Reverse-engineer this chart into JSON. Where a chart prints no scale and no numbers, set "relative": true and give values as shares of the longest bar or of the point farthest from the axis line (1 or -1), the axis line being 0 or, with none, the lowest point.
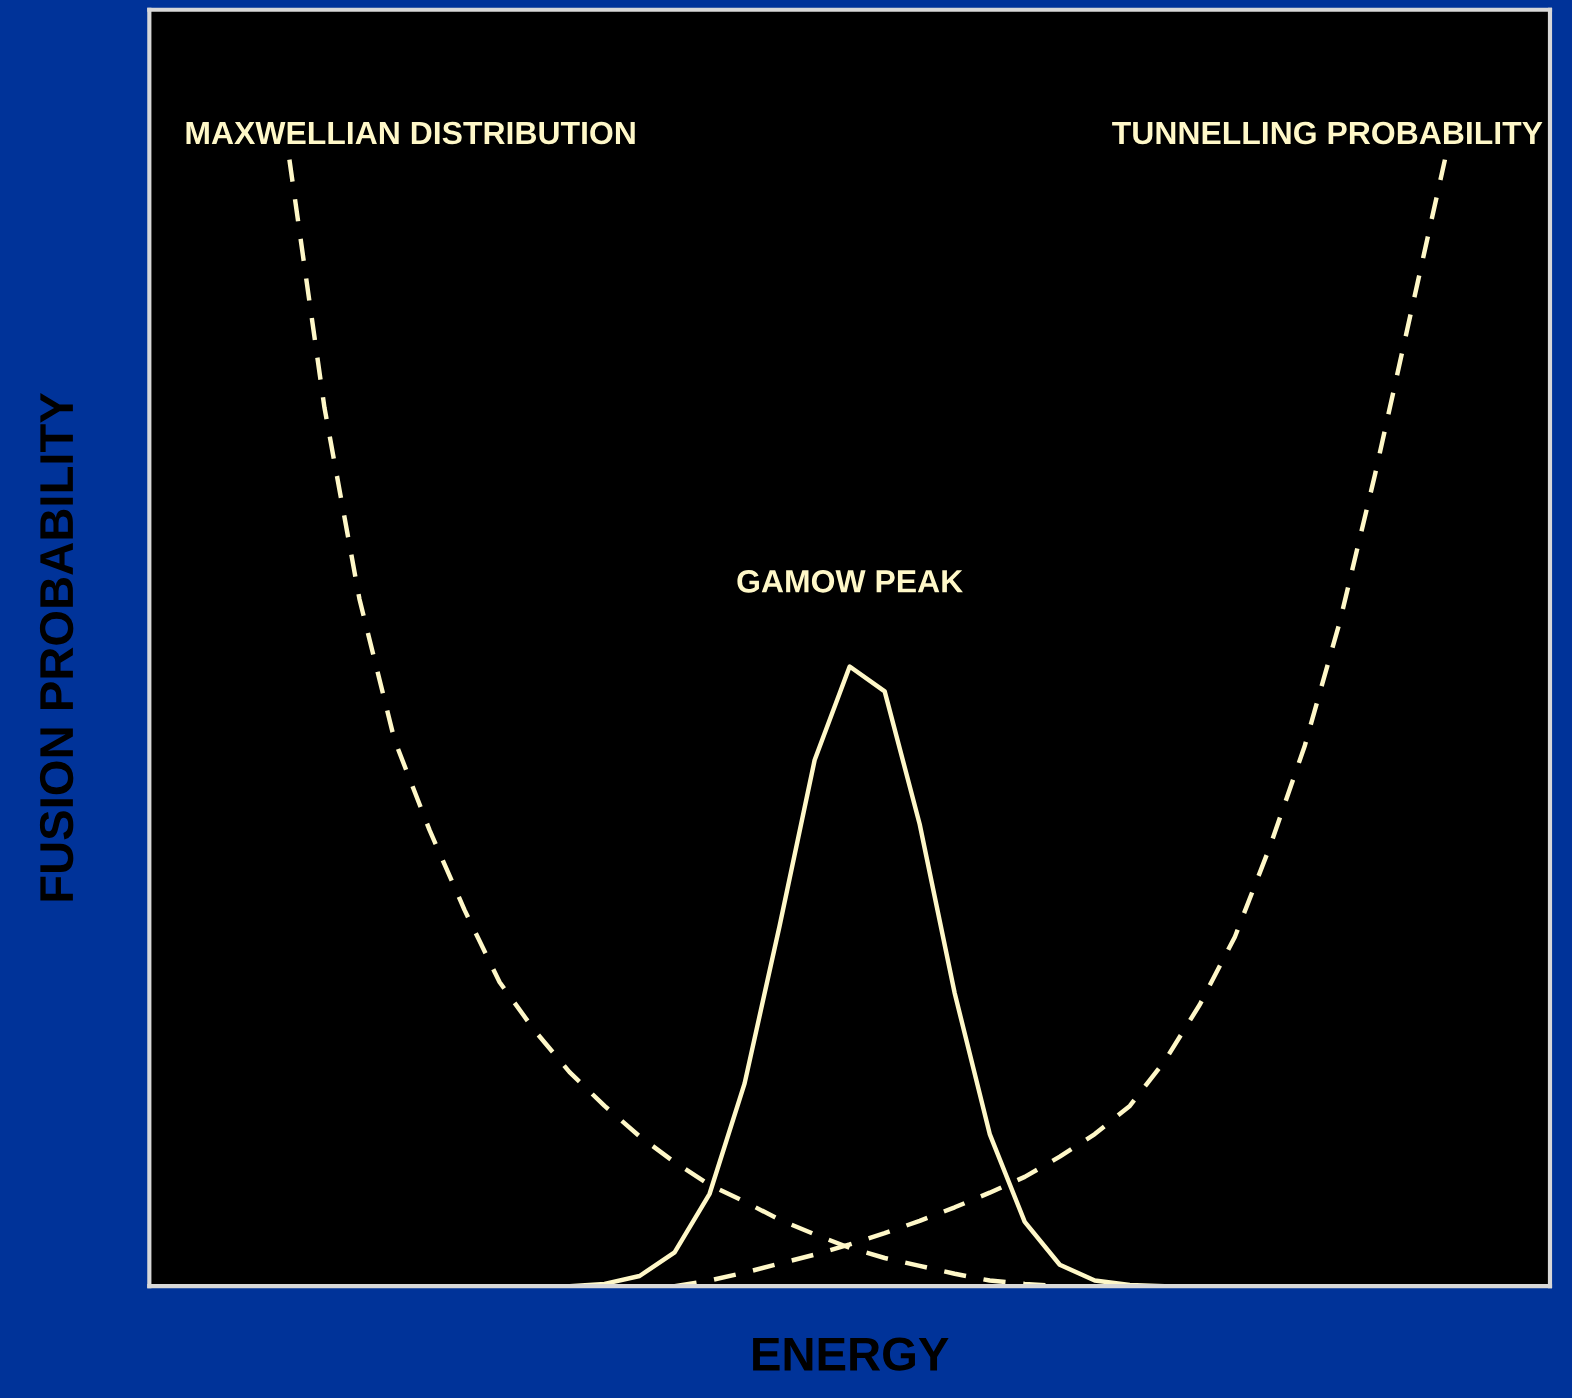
{
  "chart_data": {
    "type": "line",
    "relative": true,
    "xlabel": "ENERGY",
    "ylabel": "FUSION PROBABILITY",
    "legend": false,
    "categories": [
      null,
      null,
      null,
      null,
      null,
      null,
      null,
      null,
      null,
      null,
      null,
      null,
      null,
      null,
      null,
      null,
      null,
      null,
      null,
      null,
      null,
      null,
      null,
      null,
      null,
      null,
      null,
      null,
      null,
      null,
      null,
      null,
      null,
      null,
      null,
      null,
      null,
      null,
      null,
      null,
      null
    ],
    "series": [
      {
        "name": "MAXWELLIAN DISTRIBUTION",
        "color": "#fff8c8",
        "line_style": "dashed",
        "values": [
          null,
          null,
          null,
          null,
          1.0,
          0.78,
          0.61,
          0.485,
          0.405,
          0.334,
          0.27,
          0.227,
          0.19,
          0.16,
          0.133,
          0.11,
          0.09,
          0.075,
          0.059,
          0.046,
          0.034,
          0.025,
          0.018,
          0.011,
          0.005,
          0.002,
          0,
          null,
          null,
          null,
          null,
          null,
          null,
          null,
          null,
          null,
          null,
          null,
          null,
          null,
          null
        ]
      },
      {
        "name": "TUNNELLING PROBABILITY",
        "color": "#fff8c8",
        "line_style": "dashed",
        "values": [
          null,
          null,
          null,
          null,
          null,
          null,
          null,
          null,
          null,
          null,
          null,
          null,
          null,
          null,
          null,
          0,
          0.005,
          0.012,
          0.02,
          0.028,
          0.037,
          0.047,
          0.058,
          0.07,
          0.083,
          0.097,
          0.115,
          0.135,
          0.16,
          0.2,
          0.25,
          0.31,
          0.39,
          0.48,
          0.59,
          0.72,
          0.86,
          1.0,
          null,
          null,
          null
        ]
      },
      {
        "name": "GAMOW PEAK",
        "color": "#fff8c8",
        "line_style": "solid",
        "values": [
          null,
          null,
          null,
          null,
          null,
          null,
          null,
          null,
          null,
          null,
          null,
          0,
          0,
          0.002,
          0.009,
          0.03,
          0.082,
          0.18,
          0.32,
          0.467,
          0.55,
          0.528,
          0.41,
          0.26,
          0.135,
          0.057,
          0.019,
          0.005,
          0.001,
          0,
          null,
          null,
          null,
          null,
          null,
          null,
          null,
          null,
          null,
          null,
          null
        ]
      }
    ]
  }
}
